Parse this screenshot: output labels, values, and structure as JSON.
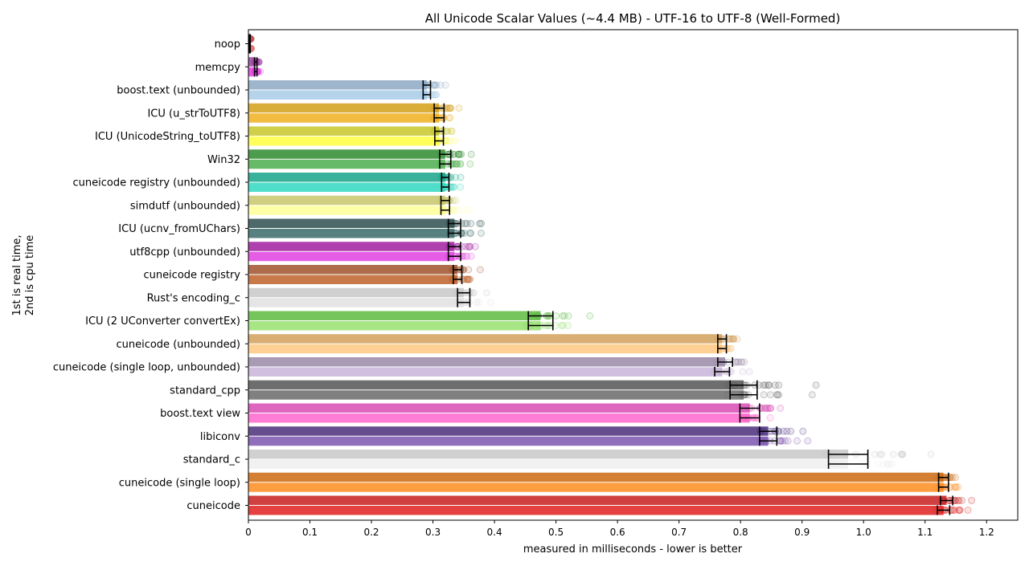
{
  "chart_data": {
    "type": "bar",
    "title": "All Unicode Scalar Values (~4.4 MB) - UTF-16 to UTF-8 (Well-Formed)",
    "xlabel": "measured in milliseconds - lower is better",
    "ylabel_lines": [
      "1st is real time,",
      "2nd is cpu time"
    ],
    "xlim": [
      0,
      1.25
    ],
    "xticks": [
      "0",
      "0.1",
      "0.2",
      "0.3",
      "0.4",
      "0.5",
      "0.6",
      "0.7",
      "0.8",
      "0.9",
      "1.0",
      "1.1",
      "1.2"
    ],
    "series_names": [
      "real time",
      "cpu time"
    ],
    "categories": [
      "noop",
      "memcpy",
      "boost.text (unbounded)",
      "ICU (u_strToUTF8)",
      "ICU (UnicodeString_toUTF8)",
      "Win32",
      "cuneicode registry (unbounded)",
      "simdutf (unbounded)",
      "ICU (ucnv_fromUChars)",
      "utf8cpp (unbounded)",
      "cuneicode registry",
      "Rust's encoding_c",
      "ICU (2 UConverter convertEx)",
      "cuneicode (unbounded)",
      "cuneicode (single loop, unbounded)",
      "standard_cpp",
      "boost.text view",
      "libiconv",
      "standard_c",
      "cuneicode (single loop)",
      "cuneicode"
    ],
    "real_time": [
      0.002,
      0.012,
      0.29,
      0.31,
      0.31,
      0.32,
      0.32,
      0.32,
      0.335,
      0.335,
      0.34,
      0.35,
      0.475,
      0.77,
      0.775,
      0.805,
      0.815,
      0.845,
      0.975,
      1.13,
      1.135
    ],
    "cpu_time": [
      0.002,
      0.012,
      0.29,
      0.31,
      0.31,
      0.32,
      0.32,
      0.32,
      0.335,
      0.335,
      0.34,
      0.35,
      0.475,
      0.77,
      0.77,
      0.805,
      0.815,
      0.845,
      0.975,
      1.13,
      1.13
    ],
    "error_halfwidth": [
      0.001,
      0.002,
      0.006,
      0.008,
      0.007,
      0.009,
      0.006,
      0.007,
      0.01,
      0.01,
      0.007,
      0.01,
      0.02,
      0.007,
      0.012,
      0.022,
      0.016,
      0.014,
      0.032,
      0.008,
      0.01
    ],
    "colors_top": [
      "#c44e52",
      "#9b3fa0",
      "#8da9c4",
      "#d4a017",
      "#c7c729",
      "#2e8b2e",
      "#17a589",
      "#c8c66a",
      "#2f4f4f",
      "#a020a0",
      "#a0522d",
      "#c8c8c8",
      "#5dbb3f",
      "#d2a05a",
      "#9b8aa8",
      "#555555",
      "#d94bb3",
      "#4b2f7a",
      "#c8c8c8",
      "#cc6a10",
      "#c81e1e"
    ],
    "colors_bottom": [
      "#e07070",
      "#e040e0",
      "#a8cce8",
      "#f0b020",
      "#ffff40",
      "#4cae4c",
      "#30d8c0",
      "#ffff99",
      "#3a6a6a",
      "#e040e0",
      "#c0602a",
      "#e0e0e0",
      "#98e070",
      "#ffc880",
      "#c8b4d8",
      "#6a6a6a",
      "#ff66cc",
      "#7b55b0",
      "#eeeeee",
      "#ff8c20",
      "#e02020"
    ]
  }
}
